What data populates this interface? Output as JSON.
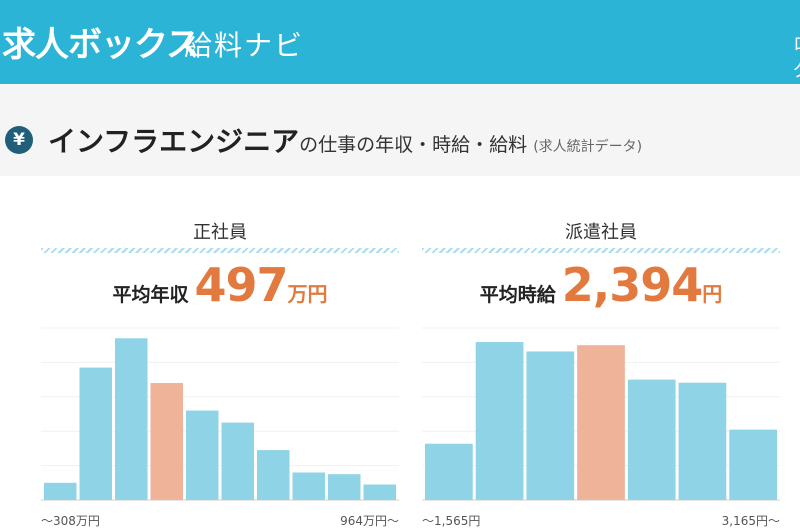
{
  "header": {
    "logo": "求人ボックス",
    "sub": "給料ナビ",
    "cut_text": "ログ"
  },
  "title": {
    "icon": "yen-icon",
    "icon_glyph": "¥",
    "main": "インフラエンジニア",
    "rest": "の仕事の年収・時給・給料",
    "note": "(求人統計データ)"
  },
  "colors": {
    "accent": "#2cb4d6",
    "bar": "#8fd3e6",
    "highlight_bar": "#eeb399",
    "value": "#e27a3f"
  },
  "panels": [
    {
      "label": "正社員",
      "stat_label": "平均年収",
      "stat_value": "497",
      "stat_unit": "万円",
      "axis_min": "〜308万円",
      "axis_max": "964万円〜"
    },
    {
      "label": "派遣社員",
      "stat_label": "平均時給",
      "stat_value": "2,394",
      "stat_unit": "円",
      "axis_min": "〜1,565円",
      "axis_max": "3,165円〜"
    }
  ],
  "chart_data": [
    {
      "type": "bar",
      "values": [
        10,
        77,
        94,
        68,
        52,
        45,
        29,
        16,
        15,
        9
      ],
      "highlight_index": 3,
      "ylim": [
        0,
        100
      ],
      "grid": true
    },
    {
      "type": "bar",
      "values": [
        36,
        101,
        95,
        99,
        77,
        75,
        45
      ],
      "highlight_index": 3,
      "ylim": [
        0,
        110
      ],
      "grid": true
    }
  ]
}
